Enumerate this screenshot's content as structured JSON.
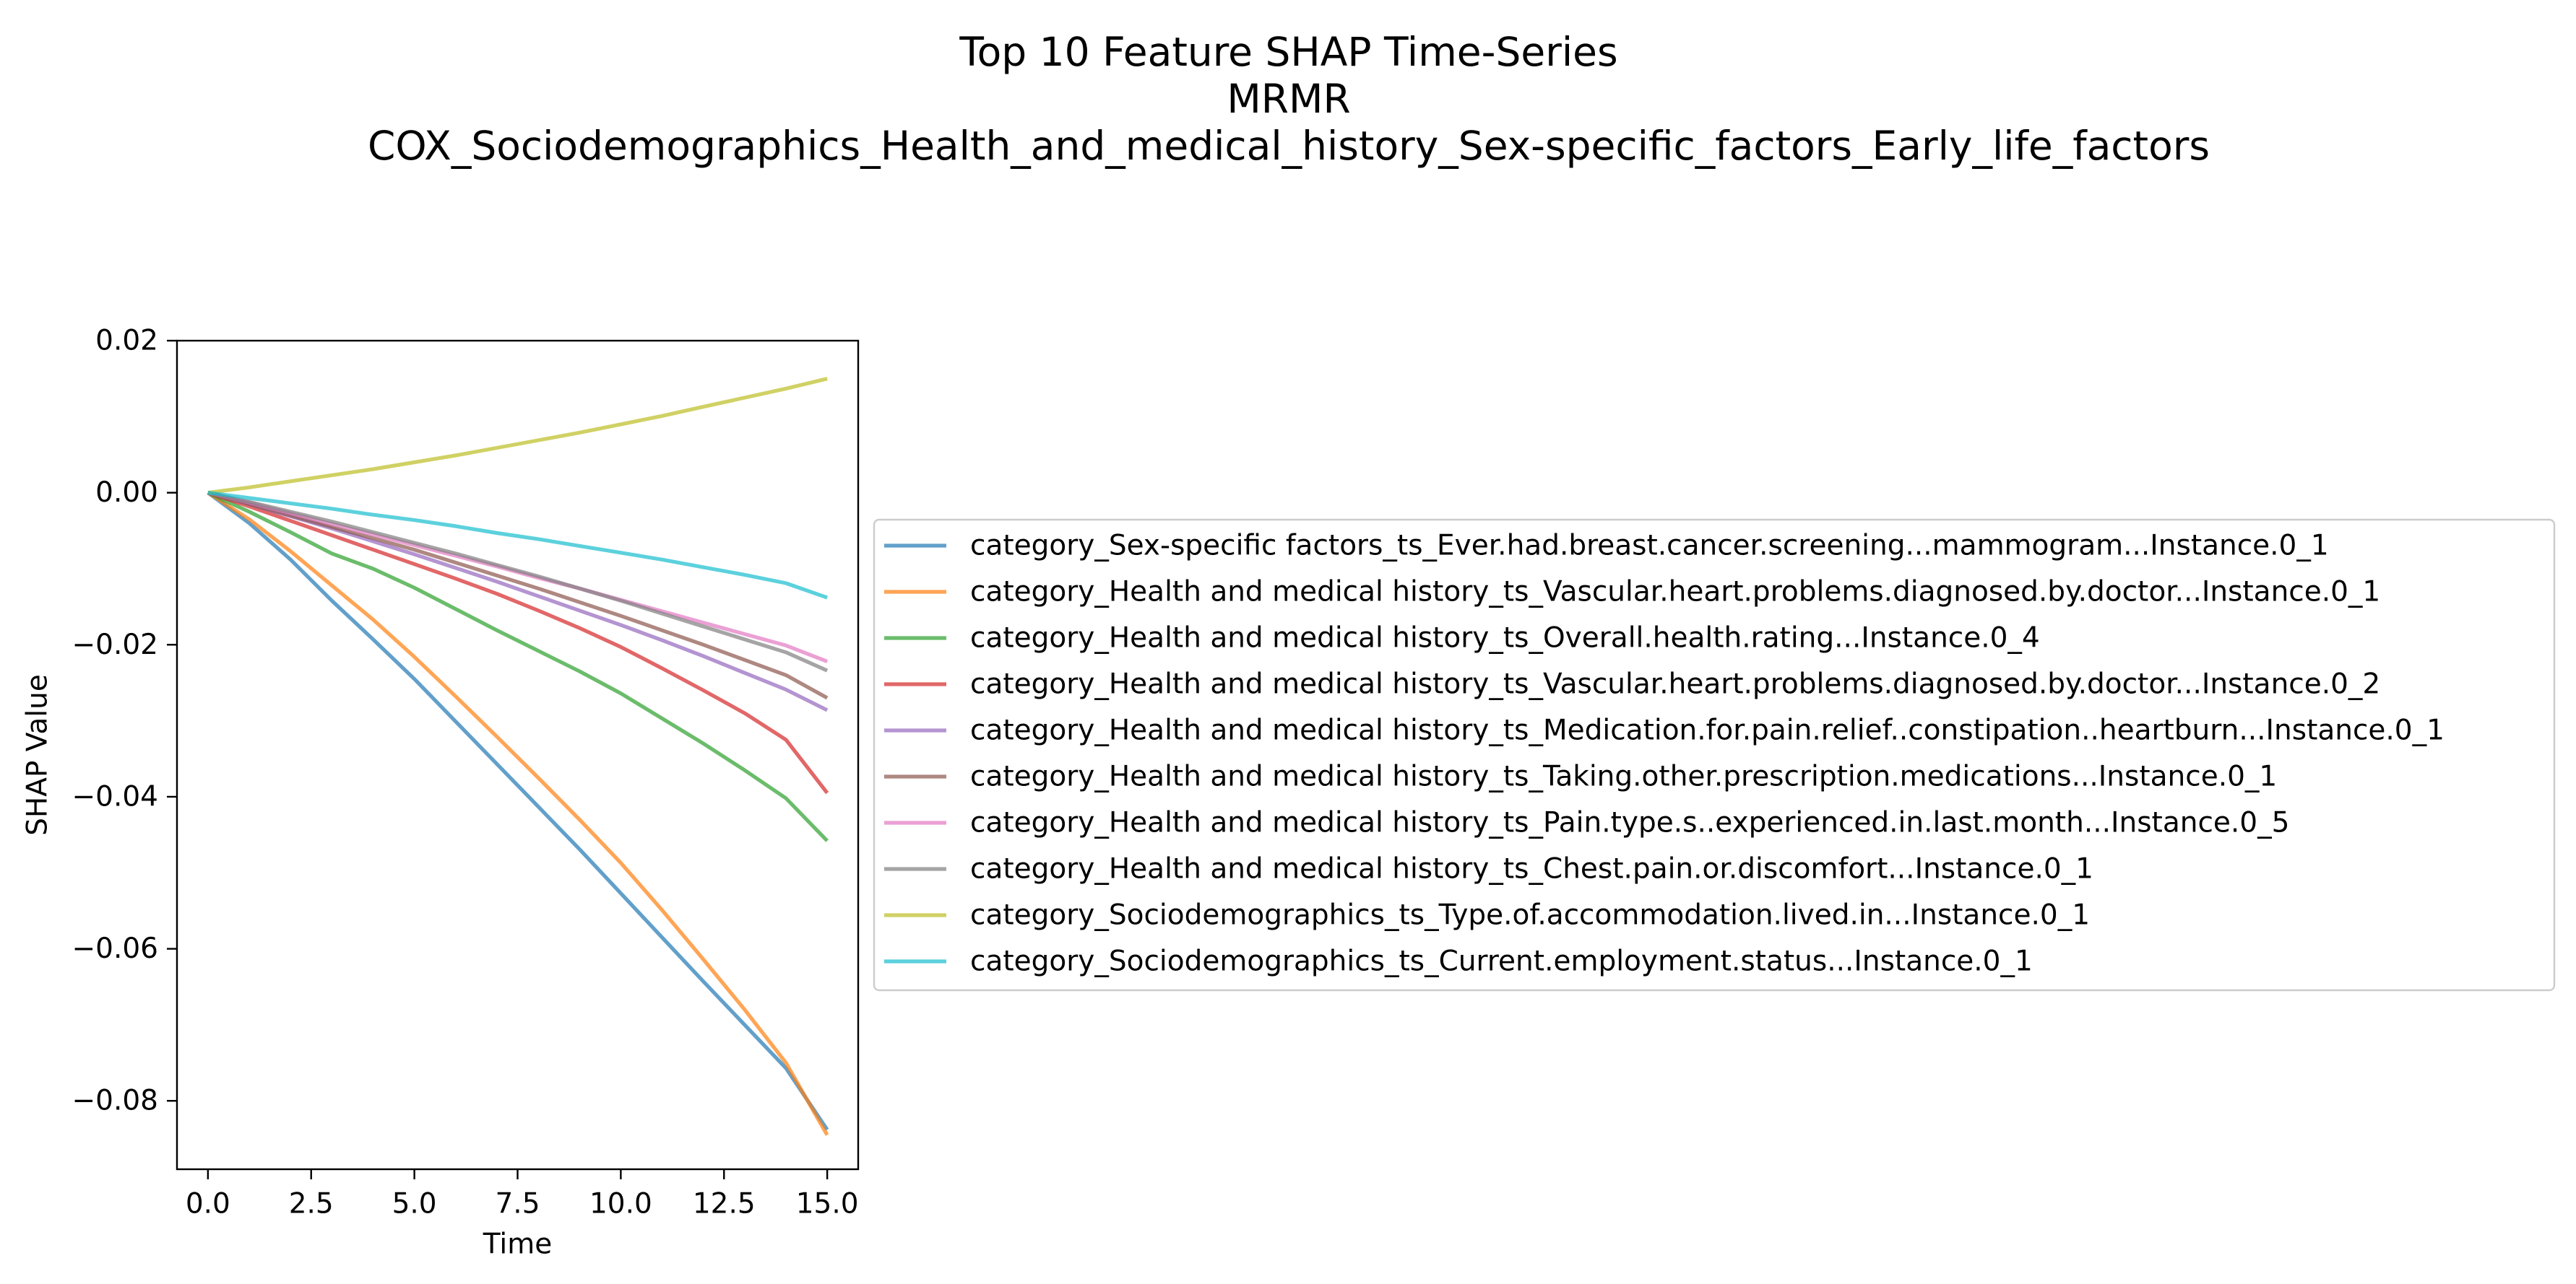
{
  "chart_data": {
    "type": "line",
    "title_lines": [
      "Top 10 Feature SHAP Time-Series",
      "MRMR",
      "COX_Sociodemographics_Health_and_medical_history_Sex-specific_factors_Early_life_factors"
    ],
    "xlabel": "Time",
    "ylabel": "SHAP Value",
    "xlim": [
      -0.75,
      15.75
    ],
    "ylim": [
      -0.089,
      0.02
    ],
    "x_ticks": [
      0.0,
      2.5,
      5.0,
      7.5,
      10.0,
      12.5,
      15.0
    ],
    "x_tick_labels": [
      "0.0",
      "2.5",
      "5.0",
      "7.5",
      "10.0",
      "12.5",
      "15.0"
    ],
    "y_ticks": [
      0.02,
      0.0,
      -0.02,
      -0.04,
      -0.06,
      -0.08
    ],
    "y_tick_labels": [
      "0.02",
      "0.00",
      "−0.02",
      "−0.04",
      "−0.06",
      "−0.08"
    ],
    "grid": false,
    "legend_position": "center-right outside plot",
    "x": [
      0,
      1,
      2,
      3,
      4,
      5,
      6,
      7,
      8,
      9,
      10,
      11,
      12,
      13,
      14,
      15
    ],
    "series": [
      {
        "name": "category_Sex-specific factors_ts_Ever.had.breast.cancer.screening...mammogram...Instance.0_1",
        "color": "#1f77b4",
        "values": [
          0,
          -0.004,
          -0.0088,
          -0.0142,
          -0.0193,
          -0.0245,
          -0.0301,
          -0.0357,
          -0.0413,
          -0.0469,
          -0.0527,
          -0.0585,
          -0.0643,
          -0.07,
          -0.0757,
          -0.0838
        ]
      },
      {
        "name": "category_Health and medical history_ts_Vascular.heart.problems.diagnosed.by.doctor...Instance.0_1",
        "color": "#ff7f0e",
        "values": [
          0,
          -0.0035,
          -0.0077,
          -0.0122,
          -0.0167,
          -0.0216,
          -0.0268,
          -0.0321,
          -0.0375,
          -0.043,
          -0.0487,
          -0.0549,
          -0.0614,
          -0.068,
          -0.075,
          -0.0845
        ]
      },
      {
        "name": "category_Health and medical history_ts_Overall.health.rating...Instance.0_4",
        "color": "#2ca02c",
        "values": [
          0,
          -0.0025,
          -0.0052,
          -0.008,
          -0.01,
          -0.0125,
          -0.0153,
          -0.0181,
          -0.0208,
          -0.0235,
          -0.0264,
          -0.0297,
          -0.033,
          -0.0365,
          -0.0402,
          -0.0458
        ]
      },
      {
        "name": "category_Health and medical history_ts_Vascular.heart.problems.diagnosed.by.doctor...Instance.0_2",
        "color": "#d62728",
        "values": [
          0,
          -0.0018,
          -0.0037,
          -0.0056,
          -0.0075,
          -0.0094,
          -0.0113,
          -0.0133,
          -0.0155,
          -0.0178,
          -0.0203,
          -0.0231,
          -0.026,
          -0.029,
          -0.0325,
          -0.0395
        ]
      },
      {
        "name": "category_Health and medical history_ts_Medication.for.pain.relief..constipation..heartburn...Instance.0_1",
        "color": "#9467bd",
        "values": [
          0,
          -0.0015,
          -0.0031,
          -0.0047,
          -0.0064,
          -0.0081,
          -0.0099,
          -0.0117,
          -0.0136,
          -0.0155,
          -0.0174,
          -0.0194,
          -0.0215,
          -0.0237,
          -0.0259,
          -0.0286
        ]
      },
      {
        "name": "category_Health and medical history_ts_Taking.other.prescription.medications...Instance.0_1",
        "color": "#8c564b",
        "values": [
          0,
          -0.0015,
          -0.003,
          -0.0045,
          -0.006,
          -0.0075,
          -0.0092,
          -0.0109,
          -0.0126,
          -0.0144,
          -0.0162,
          -0.0181,
          -0.02,
          -0.022,
          -0.024,
          -0.027
        ]
      },
      {
        "name": "category_Health and medical history_ts_Pain.type.s..experienced.in.last.month...Instance.0_5",
        "color": "#e377c2",
        "values": [
          0,
          -0.0013,
          -0.0027,
          -0.0041,
          -0.0055,
          -0.0069,
          -0.0083,
          -0.0097,
          -0.0112,
          -0.0126,
          -0.0141,
          -0.0156,
          -0.0171,
          -0.0186,
          -0.0201,
          -0.0222
        ]
      },
      {
        "name": "category_Health and medical history_ts_Chest.pain.or.discomfort...Instance.0_1",
        "color": "#7f7f7f",
        "values": [
          0,
          -0.0012,
          -0.0025,
          -0.0038,
          -0.0052,
          -0.0066,
          -0.008,
          -0.0095,
          -0.011,
          -0.0126,
          -0.0142,
          -0.0159,
          -0.0176,
          -0.0193,
          -0.021,
          -0.0234
        ]
      },
      {
        "name": "category_Sociodemographics_ts_Type.of.accommodation.lived.in...Instance.0_1",
        "color": "#bcbd22",
        "values": [
          0,
          0.0007,
          0.0015,
          0.0023,
          0.0031,
          0.004,
          0.0049,
          0.0059,
          0.0069,
          0.0079,
          0.009,
          0.0101,
          0.0113,
          0.0125,
          0.0137,
          0.015
        ]
      },
      {
        "name": "category_Sociodemographics_ts_Current.employment.status...Instance.0_1",
        "color": "#17becf",
        "values": [
          0,
          -0.0007,
          -0.0014,
          -0.0021,
          -0.0029,
          -0.0036,
          -0.0044,
          -0.0053,
          -0.0061,
          -0.007,
          -0.0079,
          -0.0088,
          -0.0098,
          -0.0108,
          -0.0119,
          -0.0138
        ]
      }
    ]
  }
}
